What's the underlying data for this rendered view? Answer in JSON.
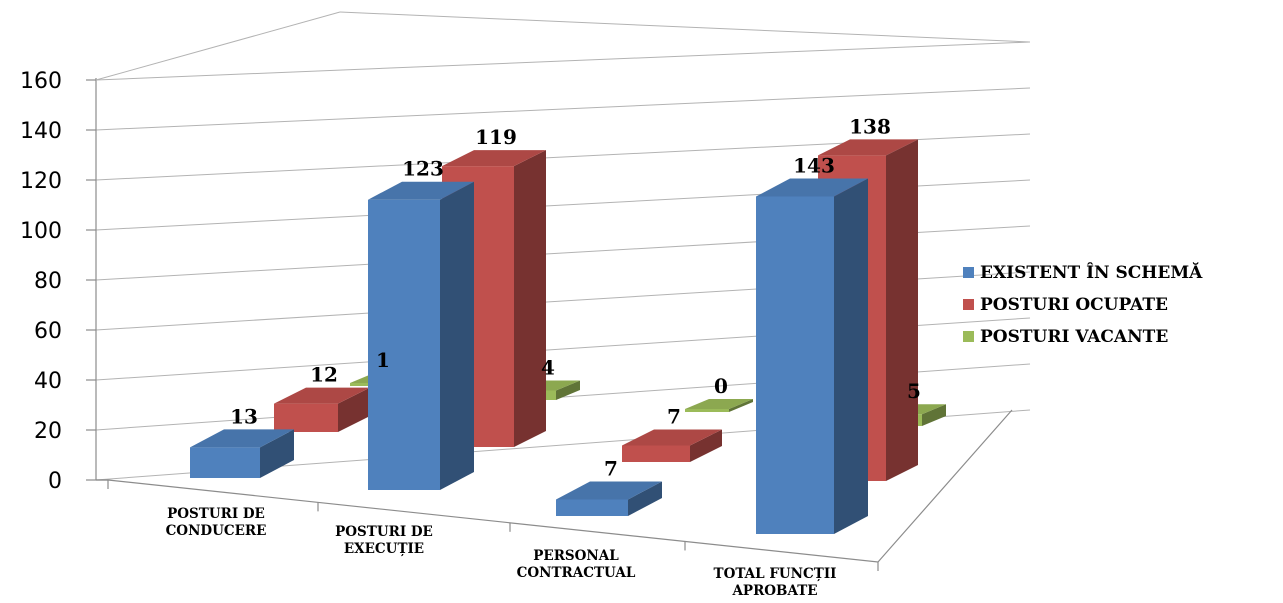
{
  "chart_data": {
    "type": "bar",
    "variant": "3d-clustered-column",
    "categories": [
      [
        "POSTURI DE",
        "CONDUCERE"
      ],
      [
        "POSTURI DE",
        "EXECUȚIE"
      ],
      [
        "PERSONAL",
        "CONTRACTUAL"
      ],
      [
        "TOTAL FUNCȚII",
        "APROBATE"
      ]
    ],
    "series": [
      {
        "name": "EXISTENT ÎN SCHEMĂ",
        "color": "#4f81bd",
        "values": [
          13,
          123,
          7,
          143
        ]
      },
      {
        "name": "POSTURI OCUPATE",
        "color": "#c0504d",
        "values": [
          12,
          119,
          7,
          138
        ]
      },
      {
        "name": "POSTURI VACANTE",
        "color": "#9bbb59",
        "values": [
          1,
          4,
          0,
          5
        ]
      }
    ],
    "ylim": [
      0,
      160
    ],
    "yticks": [
      0,
      20,
      40,
      60,
      80,
      100,
      120,
      140,
      160
    ],
    "grid": true,
    "legend": "right"
  }
}
